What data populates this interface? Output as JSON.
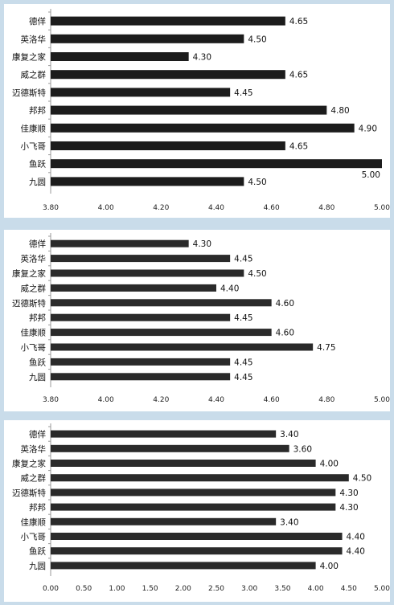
{
  "chart_data": [
    {
      "type": "bar",
      "orientation": "horizontal",
      "categories": [
        "德佯",
        "英洛华",
        "康复之家",
        "威之群",
        "迈德斯特",
        "邦邦",
        "佳康顺",
        "小飞哥",
        "鱼跃",
        "九圆"
      ],
      "values": [
        4.65,
        4.5,
        4.3,
        4.65,
        4.45,
        4.8,
        4.9,
        4.65,
        5.0,
        4.5
      ],
      "value_labels": [
        "4.65",
        "4.50",
        "4.30",
        "4.65",
        "4.45",
        "4.80",
        "4.90",
        "4.65",
        "5.00",
        "4.50"
      ],
      "xlim": [
        3.8,
        5.0
      ],
      "xticks": [
        "3.80",
        "4.00",
        "4.20",
        "4.40",
        "4.60",
        "4.80",
        "5.00"
      ],
      "bar_color": "#1c1c1c",
      "grid": false
    },
    {
      "type": "bar",
      "orientation": "horizontal",
      "categories": [
        "德佯",
        "英洛华",
        "康复之家",
        "威之群",
        "迈德斯特",
        "邦邦",
        "佳康顺",
        "小飞哥",
        "鱼跃",
        "九圆"
      ],
      "values": [
        4.3,
        4.45,
        4.5,
        4.4,
        4.6,
        4.45,
        4.6,
        4.75,
        4.45,
        4.45
      ],
      "value_labels": [
        "4.30",
        "4.45",
        "4.50",
        "4.40",
        "4.60",
        "4.45",
        "4.60",
        "4.75",
        "4.45",
        "4.45"
      ],
      "xlim": [
        3.8,
        5.0
      ],
      "xticks": [
        "3.80",
        "4.00",
        "4.20",
        "4.40",
        "4.60",
        "4.80",
        "5.00"
      ],
      "bar_color": "#2a2a2a",
      "grid": false
    },
    {
      "type": "bar",
      "orientation": "horizontal",
      "categories": [
        "德佯",
        "英洛华",
        "康复之家",
        "威之群",
        "迈德斯特",
        "邦邦",
        "佳康顺",
        "小飞哥",
        "鱼跃",
        "九圆"
      ],
      "values": [
        3.4,
        3.6,
        4.0,
        4.5,
        4.3,
        4.3,
        3.4,
        4.4,
        4.4,
        4.0
      ],
      "value_labels": [
        "3.40",
        "3.60",
        "4.00",
        "4.50",
        "4.30",
        "4.30",
        "3.40",
        "4.40",
        "4.40",
        "4.00"
      ],
      "xlim": [
        0,
        5.0
      ],
      "xticks": [
        "0.00",
        "0.50",
        "1.00",
        "1.50",
        "2.00",
        "2.50",
        "3.00",
        "3.50",
        "4.00",
        "4.50",
        "5.00"
      ],
      "bar_color": "#2a2a2a",
      "grid": false
    }
  ]
}
